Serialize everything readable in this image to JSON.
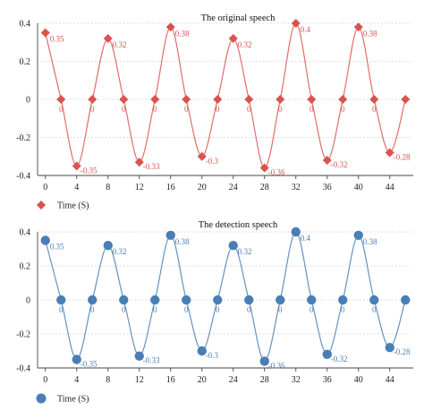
{
  "chart_data": [
    {
      "type": "line",
      "title": "The original speech",
      "x": [
        0,
        2,
        4,
        6,
        8,
        10,
        12,
        14,
        16,
        18,
        20,
        22,
        24,
        26,
        28,
        30,
        32,
        34,
        36,
        38,
        40,
        42,
        44,
        46
      ],
      "values": [
        0.35,
        0,
        -0.35,
        0,
        0.32,
        0,
        -0.33,
        0,
        0.38,
        0,
        -0.3,
        0,
        0.32,
        0,
        -0.36,
        0,
        0.4,
        0,
        -0.32,
        0,
        0.38,
        0,
        -0.28,
        0
      ],
      "data_labels": [
        "0.35",
        "0",
        "-0.35",
        "0",
        "0.32",
        "0",
        "-0.33",
        "0",
        "0.38",
        "0",
        "-0.3",
        "0",
        "0.32",
        "0",
        "-0.36",
        "0",
        "0.4",
        "0",
        "-0.32",
        "0",
        "0.38",
        "0",
        "-0.28",
        ""
      ],
      "xticks": [
        0,
        4,
        8,
        12,
        16,
        20,
        24,
        28,
        32,
        36,
        40,
        44
      ],
      "yticks": [
        0.4,
        0.2,
        0,
        -0.2,
        -0.4
      ],
      "ytick_labels": [
        "0.4",
        "0.2",
        "0",
        "-0.2",
        "-0.4"
      ],
      "xlim": [
        -1,
        47
      ],
      "ylim": [
        -0.4,
        0.4
      ],
      "xlabel": "Time (S)",
      "legend_placement": "bottom-left",
      "grid": "horizontal dotted",
      "marker": "diamond",
      "color": "#d9534f"
    },
    {
      "type": "line",
      "title": "The detection speech",
      "x": [
        0,
        2,
        4,
        6,
        8,
        10,
        12,
        14,
        16,
        18,
        20,
        22,
        24,
        26,
        28,
        30,
        32,
        34,
        36,
        38,
        40,
        42,
        44,
        46
      ],
      "values": [
        0.35,
        0,
        -0.35,
        0,
        0.32,
        0,
        -0.33,
        0,
        0.38,
        0,
        -0.3,
        0,
        0.32,
        0,
        -0.36,
        0,
        0.4,
        0,
        -0.32,
        0,
        0.38,
        0,
        -0.28,
        0
      ],
      "data_labels": [
        "0.35",
        "0",
        "-0.35",
        "0",
        "0.32",
        "0",
        "-0.33",
        "0",
        "0.38",
        "0",
        "-0.3",
        "0",
        "0.32",
        "0",
        "-0.36",
        "0",
        "0.4",
        "0",
        "-0.32",
        "0",
        "0.38",
        "0",
        "-0.28",
        ""
      ],
      "xticks": [
        0,
        4,
        8,
        12,
        16,
        20,
        24,
        28,
        32,
        36,
        40,
        44
      ],
      "yticks": [
        0.4,
        0.2,
        0,
        -0.2,
        -0.4
      ],
      "ytick_labels": [
        "0.4",
        "0.2",
        "0",
        "-0.2",
        "-0.4"
      ],
      "xlim": [
        -1,
        47
      ],
      "ylim": [
        -0.4,
        0.4
      ],
      "xlabel": "Time (S)",
      "legend_placement": "bottom-left",
      "grid": "horizontal dotted",
      "marker": "circle",
      "color": "#4a7fb5"
    }
  ]
}
